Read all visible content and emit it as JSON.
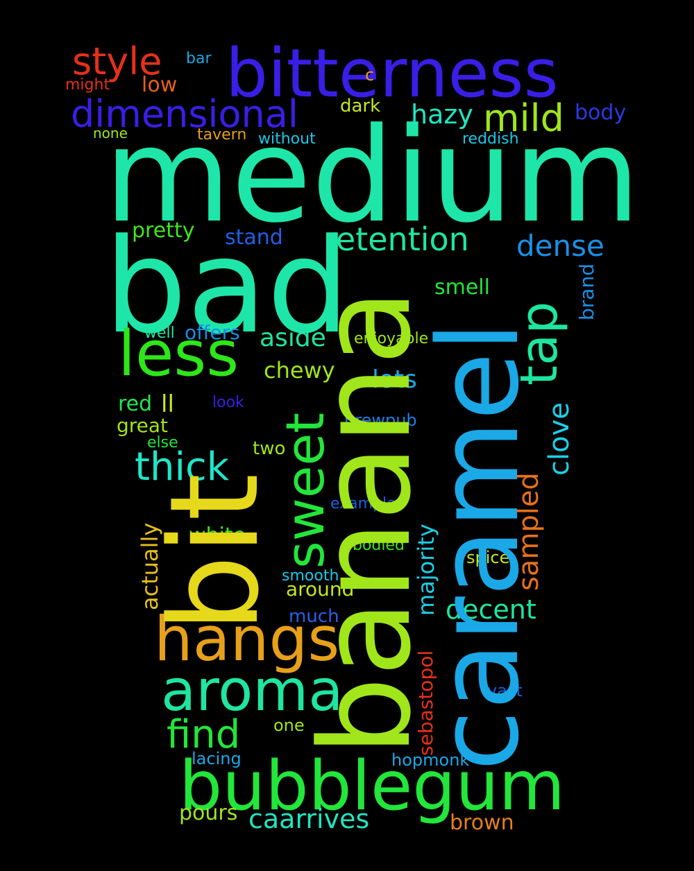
{
  "words": {
    "medium": {
      "text": "medium",
      "color": "#1ee6a8"
    },
    "bad": {
      "text": "bad",
      "color": "#1ee6a8"
    },
    "banana": {
      "text": "banana",
      "color": "#a0e61a"
    },
    "caramel": {
      "text": "caramel",
      "color": "#1aa8e6"
    },
    "bit": {
      "text": "bit",
      "color": "#e6d81a"
    },
    "bitterness": {
      "text": "bitterness",
      "color": "#3a1ee6"
    },
    "bubblegum": {
      "text": "bubblegum",
      "color": "#22e63a"
    },
    "hangs": {
      "text": "hangs",
      "color": "#e6a01a"
    },
    "aroma": {
      "text": "aroma",
      "color": "#1ee6a0"
    },
    "less": {
      "text": "less",
      "color": "#2ee61a"
    },
    "sweet": {
      "text": "sweet",
      "color": "#22e63a"
    },
    "dimensional": {
      "text": "dimensional",
      "color": "#3a1ee6"
    },
    "style": {
      "text": "style",
      "color": "#e6301a"
    },
    "tap": {
      "text": "tap",
      "color": "#1ee6a0"
    },
    "thick": {
      "text": "thick",
      "color": "#1ee6c8"
    },
    "find": {
      "text": "find",
      "color": "#22e63a"
    },
    "retention": {
      "text": "retention",
      "color": "#1ee6a0"
    },
    "mild": {
      "text": "mild",
      "color": "#a0e61a"
    },
    "dense": {
      "text": "dense",
      "color": "#1a90e6"
    },
    "hazy": {
      "text": "hazy",
      "color": "#1ee6c0"
    },
    "caarrives": {
      "text": "caarrives",
      "color": "#1ee6c0"
    },
    "clove": {
      "text": "clove",
      "color": "#1ad0e6"
    },
    "sampled": {
      "text": "sampled",
      "color": "#e6701a"
    },
    "decent": {
      "text": "decent",
      "color": "#1ee6a0"
    },
    "aside": {
      "text": "aside",
      "color": "#1ee6a0"
    },
    "lots": {
      "text": "lots",
      "color": "#1aa8e6"
    },
    "pretty": {
      "text": "pretty",
      "color": "#40e61a"
    },
    "chewy": {
      "text": "chewy",
      "color": "#a0e61a"
    },
    "stand": {
      "text": "stand",
      "color": "#2060e6"
    },
    "white": {
      "text": "white",
      "color": "#40e61a"
    },
    "majority": {
      "text": "majority",
      "color": "#1ad0e6"
    },
    "actually": {
      "text": "actually",
      "color": "#e6c01a"
    },
    "smell": {
      "text": "smell",
      "color": "#22e63a"
    },
    "body": {
      "text": "body",
      "color": "#2a3ae6"
    },
    "brand": {
      "text": "brand",
      "color": "#1a90e6"
    },
    "brown": {
      "text": "brown",
      "color": "#e6801a"
    },
    "pours": {
      "text": "pours",
      "color": "#a0e61a"
    },
    "sebastopol": {
      "text": "sebastopol",
      "color": "#e6301a"
    },
    "ll": {
      "text": "ll",
      "color": "#c8e61a"
    },
    "red": {
      "text": "red",
      "color": "#22e650"
    },
    "offers": {
      "text": "offers",
      "color": "#1a90e6"
    },
    "around": {
      "text": "around",
      "color": "#c8e61a"
    },
    "great": {
      "text": "great",
      "color": "#a0e61a"
    },
    "much": {
      "text": "much",
      "color": "#2a60e6"
    },
    "dark": {
      "text": "dark",
      "color": "#c8e61a"
    },
    "low": {
      "text": "low",
      "color": "#e6601a"
    },
    "two": {
      "text": "two",
      "color": "#a0e61a"
    },
    "brewpub": {
      "text": "brewpub",
      "color": "#1a80e6"
    },
    "enjoyable": {
      "text": "enjoyable",
      "color": "#a0e61a"
    },
    "spice": {
      "text": "spice",
      "color": "#c8e61a"
    },
    "lacing": {
      "text": "lacing",
      "color": "#1aa8e6"
    },
    "smooth": {
      "text": "smooth",
      "color": "#1ac8e6"
    },
    "hopmonk": {
      "text": "hopmonk",
      "color": "#1aa8e6"
    },
    "vast": {
      "text": "vast",
      "color": "#1a60e6"
    },
    "example": {
      "text": "example",
      "color": "#1a60e6"
    },
    "one": {
      "text": "one",
      "color": "#a0e61a"
    },
    "bodied": {
      "text": "bodied",
      "color": "#40e61a"
    },
    "well": {
      "text": "well",
      "color": "#1ee6a0"
    },
    "look": {
      "text": "look",
      "color": "#3a1ee6"
    },
    "else": {
      "text": "else",
      "color": "#22e63a"
    },
    "tavern": {
      "text": "tavern",
      "color": "#e6a01a"
    },
    "without": {
      "text": "without",
      "color": "#1ac8e6"
    },
    "reddish": {
      "text": "reddish",
      "color": "#1ac8e6"
    },
    "none": {
      "text": "none",
      "color": "#a0e61a"
    },
    "might": {
      "text": "might",
      "color": "#e6301a"
    },
    "bar": {
      "text": "bar",
      "color": "#1aa8e6"
    },
    "c": {
      "text": "c",
      "color": "#e6a01a"
    }
  }
}
